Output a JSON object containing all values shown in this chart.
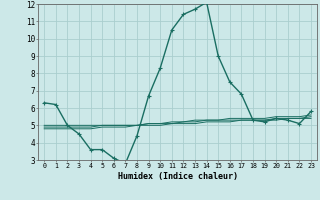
{
  "xlabel": "Humidex (Indice chaleur)",
  "bg_color": "#cce8e8",
  "grid_color": "#aacece",
  "line_color": "#1a6e62",
  "xlim": [
    -0.5,
    23.5
  ],
  "ylim": [
    3,
    12
  ],
  "yticks": [
    3,
    4,
    5,
    6,
    7,
    8,
    9,
    10,
    11,
    12
  ],
  "xticks": [
    0,
    1,
    2,
    3,
    4,
    5,
    6,
    7,
    8,
    9,
    10,
    11,
    12,
    13,
    14,
    15,
    16,
    17,
    18,
    19,
    20,
    21,
    22,
    23
  ],
  "series": [
    {
      "y": [
        6.3,
        6.2,
        5.0,
        4.5,
        3.6,
        3.6,
        3.1,
        2.8,
        4.4,
        6.7,
        8.3,
        10.5,
        11.4,
        11.7,
        12.1,
        9.0,
        7.5,
        6.8,
        5.3,
        5.2,
        5.4,
        5.3,
        5.1,
        5.8
      ],
      "marker": true,
      "lw": 1.0
    },
    {
      "y": [
        5.0,
        5.0,
        5.0,
        5.0,
        5.0,
        5.0,
        5.0,
        5.0,
        5.0,
        5.1,
        5.1,
        5.2,
        5.2,
        5.3,
        5.3,
        5.3,
        5.4,
        5.4,
        5.4,
        5.4,
        5.5,
        5.5,
        5.5,
        5.6
      ],
      "marker": false,
      "lw": 0.7
    },
    {
      "y": [
        4.9,
        4.9,
        4.9,
        4.9,
        4.9,
        5.0,
        5.0,
        5.0,
        5.0,
        5.1,
        5.1,
        5.1,
        5.2,
        5.2,
        5.3,
        5.3,
        5.3,
        5.3,
        5.3,
        5.3,
        5.4,
        5.4,
        5.4,
        5.5
      ],
      "marker": false,
      "lw": 0.7
    },
    {
      "y": [
        4.8,
        4.8,
        4.8,
        4.8,
        4.8,
        4.9,
        4.9,
        4.9,
        5.0,
        5.0,
        5.0,
        5.1,
        5.1,
        5.1,
        5.2,
        5.2,
        5.2,
        5.3,
        5.3,
        5.3,
        5.3,
        5.4,
        5.4,
        5.4
      ],
      "marker": false,
      "lw": 0.7
    }
  ]
}
